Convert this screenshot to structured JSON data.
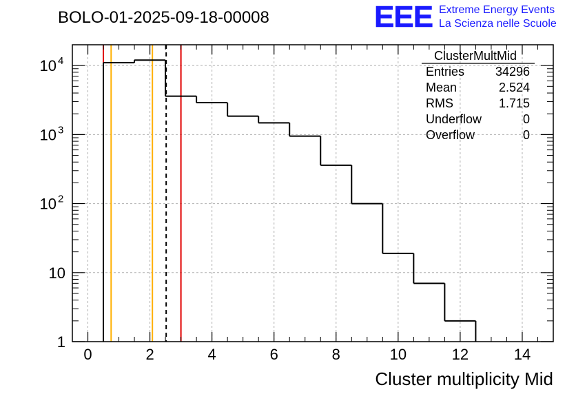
{
  "logo": {
    "letters": "EEE",
    "line1": "Extreme Energy Events",
    "line2": "La Scienza nelle Scuole",
    "color": "#1a1aff"
  },
  "chart_data": {
    "type": "histogram",
    "title": "BOLO-01-2025-09-18-00008",
    "xlabel": "Cluster multiplicity Mid",
    "ylabel": "",
    "xlim": [
      -0.5,
      15.0
    ],
    "ylim": [
      1,
      20000
    ],
    "yscale": "log",
    "grid": true,
    "x_ticks": [
      0,
      2,
      4,
      6,
      8,
      10,
      12,
      14
    ],
    "y_ticks": [
      {
        "value": 1,
        "label": "1"
      },
      {
        "value": 10,
        "label": "10"
      },
      {
        "value": 100,
        "label": "10",
        "exp": "2"
      },
      {
        "value": 1000,
        "label": "10",
        "exp": "3"
      },
      {
        "value": 10000,
        "label": "10",
        "exp": "4"
      }
    ],
    "bins": [
      {
        "low": 0.5,
        "high": 1.5,
        "value": 11000
      },
      {
        "low": 1.5,
        "high": 2.5,
        "value": 12000
      },
      {
        "low": 2.5,
        "high": 3.5,
        "value": 3600
      },
      {
        "low": 3.5,
        "high": 4.5,
        "value": 2900
      },
      {
        "low": 4.5,
        "high": 5.5,
        "value": 1850
      },
      {
        "low": 5.5,
        "high": 6.5,
        "value": 1480
      },
      {
        "low": 6.5,
        "high": 7.5,
        "value": 950
      },
      {
        "low": 7.5,
        "high": 8.5,
        "value": 360
      },
      {
        "low": 8.5,
        "high": 9.5,
        "value": 100
      },
      {
        "low": 9.5,
        "high": 10.5,
        "value": 19
      },
      {
        "low": 10.5,
        "high": 11.5,
        "value": 7
      },
      {
        "low": 11.5,
        "high": 12.5,
        "value": 2
      }
    ],
    "vertical_lines": [
      {
        "x": 0.5,
        "color": "#e00000",
        "style": "solid"
      },
      {
        "x": 3.0,
        "color": "#e00000",
        "style": "solid"
      },
      {
        "x": 0.75,
        "color": "#ffb000",
        "style": "solid"
      },
      {
        "x": 2.08,
        "color": "#ffb000",
        "style": "solid"
      },
      {
        "x": 2.524,
        "color": "#000000",
        "style": "dashed"
      }
    ],
    "stats": {
      "name": "ClusterMultMid",
      "rows": [
        {
          "label": "Entries",
          "value": "34296"
        },
        {
          "label": "Mean",
          "value": "2.524"
        },
        {
          "label": "RMS",
          "value": "1.715"
        },
        {
          "label": "Underflow",
          "value": "0"
        },
        {
          "label": "Overflow",
          "value": "0"
        }
      ]
    }
  }
}
